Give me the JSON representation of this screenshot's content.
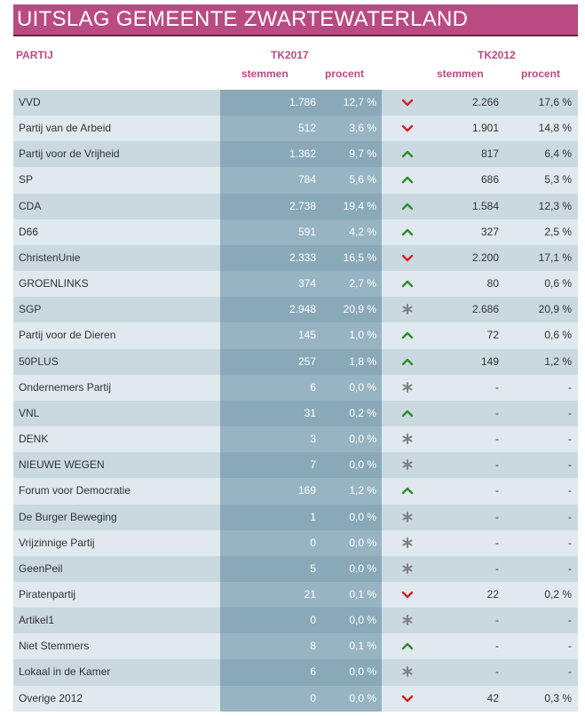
{
  "title": "UITSLAG GEMEENTE ZWARTEWATERLAND",
  "headers": {
    "partij": "PARTIJ",
    "tk2017": "TK2017",
    "tk2012": "TK2012",
    "stemmen": "stemmen",
    "procent": "procent"
  },
  "colors": {
    "accent": "#b94b82",
    "up": "#2e8b2e",
    "down": "#d0202a",
    "same": "#808080"
  },
  "rows": [
    {
      "party": "VVD",
      "s17": "1.786",
      "p17": "12,7 %",
      "trend": "down",
      "s12": "2.266",
      "p12": "17,6 %"
    },
    {
      "party": "Partij van de Arbeid",
      "s17": "512",
      "p17": "3,6 %",
      "trend": "down",
      "s12": "1.901",
      "p12": "14,8 %"
    },
    {
      "party": "Partij voor de Vrijheid",
      "s17": "1.362",
      "p17": "9,7 %",
      "trend": "up",
      "s12": "817",
      "p12": "6,4 %"
    },
    {
      "party": "SP",
      "s17": "784",
      "p17": "5,6 %",
      "trend": "up",
      "s12": "686",
      "p12": "5,3 %"
    },
    {
      "party": "CDA",
      "s17": "2.738",
      "p17": "19,4 %",
      "trend": "up",
      "s12": "1.584",
      "p12": "12,3 %"
    },
    {
      "party": "D66",
      "s17": "591",
      "p17": "4,2 %",
      "trend": "up",
      "s12": "327",
      "p12": "2,5 %"
    },
    {
      "party": "ChristenUnie",
      "s17": "2.333",
      "p17": "16,5 %",
      "trend": "down",
      "s12": "2.200",
      "p12": "17,1 %"
    },
    {
      "party": "GROENLINKS",
      "s17": "374",
      "p17": "2,7 %",
      "trend": "up",
      "s12": "80",
      "p12": "0,6 %"
    },
    {
      "party": "SGP",
      "s17": "2.948",
      "p17": "20,9 %",
      "trend": "same",
      "s12": "2.686",
      "p12": "20,9 %"
    },
    {
      "party": "Partij voor de Dieren",
      "s17": "145",
      "p17": "1,0 %",
      "trend": "up",
      "s12": "72",
      "p12": "0,6 %"
    },
    {
      "party": "50PLUS",
      "s17": "257",
      "p17": "1,8 %",
      "trend": "up",
      "s12": "149",
      "p12": "1,2 %"
    },
    {
      "party": "Ondernemers Partij",
      "s17": "6",
      "p17": "0,0 %",
      "trend": "same",
      "s12": "-",
      "p12": "-"
    },
    {
      "party": "VNL",
      "s17": "31",
      "p17": "0,2 %",
      "trend": "up",
      "s12": "-",
      "p12": "-"
    },
    {
      "party": "DENK",
      "s17": "3",
      "p17": "0,0 %",
      "trend": "same",
      "s12": "-",
      "p12": "-"
    },
    {
      "party": "NIEUWE WEGEN",
      "s17": "7",
      "p17": "0,0 %",
      "trend": "same",
      "s12": "-",
      "p12": "-"
    },
    {
      "party": "Forum voor Democratie",
      "s17": "169",
      "p17": "1,2 %",
      "trend": "up",
      "s12": "-",
      "p12": "-"
    },
    {
      "party": "De Burger Beweging",
      "s17": "1",
      "p17": "0,0 %",
      "trend": "same",
      "s12": "-",
      "p12": "-"
    },
    {
      "party": "Vrijzinnige Partij",
      "s17": "0",
      "p17": "0,0 %",
      "trend": "same",
      "s12": "-",
      "p12": "-"
    },
    {
      "party": "GeenPeil",
      "s17": "5",
      "p17": "0,0 %",
      "trend": "same",
      "s12": "-",
      "p12": "-"
    },
    {
      "party": "Piratenpartij",
      "s17": "21",
      "p17": "0,1 %",
      "trend": "down",
      "s12": "22",
      "p12": "0,2 %"
    },
    {
      "party": "Artikel1",
      "s17": "0",
      "p17": "0,0 %",
      "trend": "same",
      "s12": "-",
      "p12": "-"
    },
    {
      "party": "Niet Stemmers",
      "s17": "8",
      "p17": "0,1 %",
      "trend": "up",
      "s12": "-",
      "p12": "-"
    },
    {
      "party": "Lokaal in de Kamer",
      "s17": "6",
      "p17": "0,0 %",
      "trend": "same",
      "s12": "-",
      "p12": "-"
    },
    {
      "party": "Overige 2012",
      "s17": "0",
      "p17": "0,0 %",
      "trend": "down",
      "s12": "42",
      "p12": "0,3 %"
    }
  ]
}
